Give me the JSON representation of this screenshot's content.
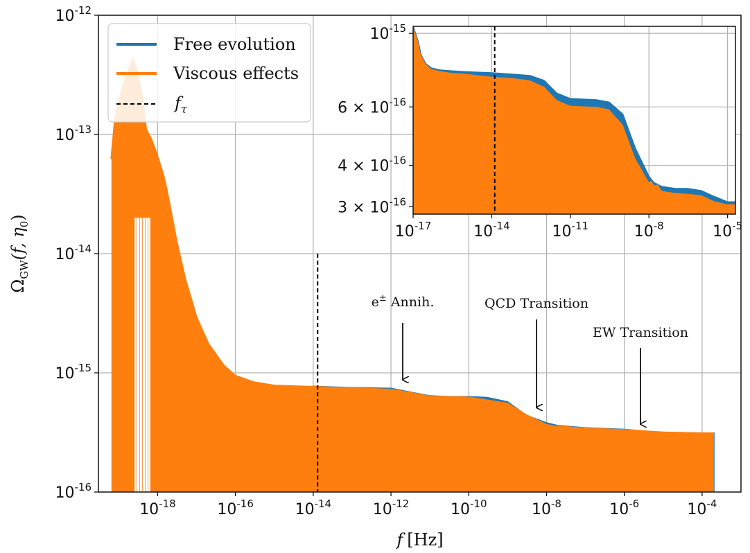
{
  "chart_data": [
    {
      "type": "area",
      "name": "main",
      "xscale": "log",
      "yscale": "log",
      "xlim": [
        3e-20,
        0.001
      ],
      "ylim": [
        1e-16,
        1e-12
      ],
      "xlabel": "f [Hz]",
      "ylabel": "Ω_GW(f, η0)",
      "x_ticks": [
        {
          "value": 1e-18,
          "base": "10",
          "exp": "-18"
        },
        {
          "value": 1e-16,
          "base": "10",
          "exp": "-16"
        },
        {
          "value": 1e-14,
          "base": "10",
          "exp": "-14"
        },
        {
          "value": 1e-12,
          "base": "10",
          "exp": "-12"
        },
        {
          "value": 1e-10,
          "base": "10",
          "exp": "-10"
        },
        {
          "value": 1e-08,
          "base": "10",
          "exp": "-8"
        },
        {
          "value": 1e-06,
          "base": "10",
          "exp": "-6"
        },
        {
          "value": 0.0001,
          "base": "10",
          "exp": "-4"
        }
      ],
      "y_ticks": [
        {
          "value": 1e-16,
          "base": "10",
          "exp": "-16"
        },
        {
          "value": 1e-15,
          "base": "10",
          "exp": "-15"
        },
        {
          "value": 1e-14,
          "base": "10",
          "exp": "-14"
        },
        {
          "value": 1e-13,
          "base": "10",
          "exp": "-13"
        },
        {
          "value": 1e-12,
          "base": "10",
          "exp": "-12"
        }
      ],
      "grid": true,
      "legend_position": "top-left",
      "series": [
        {
          "name": "Free evolution",
          "color": "#1f77b4",
          "x": [
            1e-14,
            3e-14,
            1e-13,
            3e-13,
            1e-12,
            3e-12,
            1e-11,
            3e-11,
            1e-10,
            3e-10,
            1e-09,
            3e-09,
            1e-08,
            2e-08,
            1e-07,
            1e-06,
            3e-06,
            1e-05,
            0.0001,
            0.0002
          ],
          "y": [
            7.7e-16,
            7.6e-16,
            7.5e-16,
            7.45e-16,
            7.4e-16,
            6.9e-16,
            6.4e-16,
            6.3e-16,
            6.3e-16,
            6.2e-16,
            5.7e-16,
            4.4e-16,
            3.8e-16,
            3.6e-16,
            3.45e-16,
            3.35e-16,
            3.25e-16,
            3.15e-16,
            3.12e-16,
            3.12e-16
          ]
        },
        {
          "name": "Viscous effects",
          "color": "#ff7f0e",
          "x": [
            6.5e-20,
            8e-20,
            1.1e-19,
            1.6e-19,
            2.3e-19,
            3e-19,
            4e-19,
            5e-19,
            6.7e-19,
            8.5e-19,
            1.1e-18,
            1.4e-18,
            1.7e-18,
            2e-18,
            3e-18,
            5e-18,
            1e-17,
            2e-17,
            5e-17,
            1e-16,
            3e-16,
            1e-15,
            1e-14,
            1e-13,
            1e-12,
            3e-12,
            1e-11,
            1e-10,
            1e-09,
            3e-09,
            1e-08,
            1.5e-08,
            3e-08,
            1e-07,
            1e-06,
            1e-05,
            0.0001,
            0.0002
          ],
          "y": [
            6.2e-14,
            1.3e-13,
            2.1e-13,
            3.2e-13,
            4.2e-13,
            3.3e-13,
            2e-13,
            1.1e-13,
            9.2e-14,
            7.5e-14,
            5.8e-14,
            4.5e-14,
            3.4e-14,
            2.6e-14,
            1.3e-14,
            6.2e-15,
            2.9e-15,
            1.75e-15,
            1.15e-15,
            9.4e-16,
            8.3e-16,
            7.8e-16,
            7.6e-16,
            7.4e-16,
            7.2e-16,
            6.8e-16,
            6.3e-16,
            6.2e-16,
            5.5e-16,
            4.4e-16,
            3.65e-16,
            3.55e-16,
            3.5e-16,
            3.4e-16,
            3.3e-16,
            3.15e-16,
            3.1e-16,
            3.1e-16
          ]
        },
        {
          "name": "f_τ",
          "color": "#000000",
          "style": "dashed",
          "x": [
            1.3e-14,
            1.3e-14
          ],
          "y": [
            1e-16,
            1e-14
          ]
        }
      ],
      "annotations": [
        {
          "text": "e± Annih.",
          "x": 1.6e-12,
          "y": 8.5e-16
        },
        {
          "text": "QCD Transition",
          "x": 2.5e-09,
          "y": 5e-16
        },
        {
          "text": "EW Transition",
          "x": 1.5e-06,
          "y": 3.5e-16
        }
      ]
    },
    {
      "type": "area",
      "name": "inset",
      "xscale": "log",
      "yscale": "log",
      "xlim": [
        1e-17,
        2e-05
      ],
      "ylim": [
        2.85e-16,
        1.05e-15
      ],
      "x_ticks": [
        {
          "value": 1e-17,
          "base": "10",
          "exp": "-17"
        },
        {
          "value": 1e-14,
          "base": "10",
          "exp": "-14"
        },
        {
          "value": 1e-11,
          "base": "10",
          "exp": "-11"
        },
        {
          "value": 1e-08,
          "base": "10",
          "exp": "-8"
        },
        {
          "value": 1e-05,
          "base": "10",
          "exp": "-5"
        }
      ],
      "y_ticks": [
        {
          "value": 1e-15,
          "label_type": "pow",
          "base": "10",
          "exp": "-15"
        },
        {
          "value": 6e-16,
          "label_type": "sci",
          "mant": "6 × 10",
          "exp": "-16"
        },
        {
          "value": 4e-16,
          "label_type": "sci",
          "mant": "4 × 10",
          "exp": "-16"
        },
        {
          "value": 3e-16,
          "label_type": "sci",
          "mant": "3 × 10",
          "exp": "-16"
        }
      ],
      "grid": true,
      "series": [
        {
          "name": "Free evolution",
          "color": "#1f77b4",
          "x": [
            1e-17,
            1.5e-17,
            2e-17,
            3e-17,
            5e-17,
            1e-16,
            3e-16,
            1e-15,
            1e-14,
            1e-13,
            3e-13,
            1e-12,
            3e-12,
            1e-11,
            1e-10,
            3e-10,
            1e-09,
            3e-09,
            1e-08,
            1.5e-08,
            3e-08,
            1e-07,
            3e-07,
            1e-06,
            3e-06,
            1e-05,
            2e-05
          ],
          "y": [
            1.05e-15,
            9.5e-16,
            8.6e-16,
            8.1e-16,
            7.85e-16,
            7.75e-16,
            7.7e-16,
            7.65e-16,
            7.6e-16,
            7.5e-16,
            7.45e-16,
            7.2e-16,
            6.6e-16,
            6.35e-16,
            6.3e-16,
            6.2e-16,
            5.7e-16,
            4.5e-16,
            3.7e-16,
            3.55e-16,
            3.45e-16,
            3.4e-16,
            3.4e-16,
            3.35e-16,
            3.22e-16,
            3.1e-16,
            3.1e-16
          ]
        },
        {
          "name": "Viscous effects",
          "color": "#ff7f0e",
          "x": [
            1e-17,
            1.5e-17,
            2e-17,
            3e-17,
            5e-17,
            1e-16,
            3e-16,
            1e-15,
            1e-14,
            1e-13,
            3e-13,
            1e-12,
            3e-12,
            1e-11,
            1e-10,
            3e-10,
            1e-09,
            3e-09,
            1e-08,
            1.2e-08,
            1.6e-08,
            2.2e-08,
            3e-08,
            1e-07,
            3e-07,
            1e-06,
            3e-06,
            1e-05,
            2e-05
          ],
          "y": [
            1.05e-15,
            9.5e-16,
            8.6e-16,
            8.1e-16,
            7.8e-16,
            7.7e-16,
            7.6e-16,
            7.55e-16,
            7.4e-16,
            7.3e-16,
            7.2e-16,
            6.9e-16,
            6.3e-16,
            6.05e-16,
            6e-16,
            5.9e-16,
            5.3e-16,
            4.2e-16,
            3.55e-16,
            3.6e-16,
            3.48e-16,
            3.5e-16,
            3.35e-16,
            3.3e-16,
            3.28e-16,
            3.25e-16,
            3.12e-16,
            3.05e-16,
            3.05e-16
          ]
        },
        {
          "name": "f_τ",
          "color": "#000000",
          "style": "dashed",
          "x": [
            1.3e-14,
            1.3e-14
          ],
          "y": [
            2.85e-16,
            1.05e-15
          ]
        }
      ]
    }
  ],
  "legend": {
    "items": [
      {
        "label": "Free evolution",
        "color": "#1f77b4",
        "style": "solid"
      },
      {
        "label": "Viscous effects",
        "color": "#ff7f0e",
        "style": "solid"
      },
      {
        "label_main": "f",
        "label_sub": "τ",
        "color": "#000000",
        "style": "dashed"
      }
    ]
  },
  "axis_labels": {
    "x_main": "f",
    "x_unit": "[Hz]",
    "y_main": "Ω",
    "y_sub": "GW",
    "y_args": "(f, η",
    "y_args_sub": "0",
    "y_close": ")"
  },
  "annotation_labels": {
    "e_base": "e",
    "e_sup": "±",
    "e_rest": " Annih.",
    "qcd": "QCD Transition",
    "ew": "EW Transition"
  }
}
